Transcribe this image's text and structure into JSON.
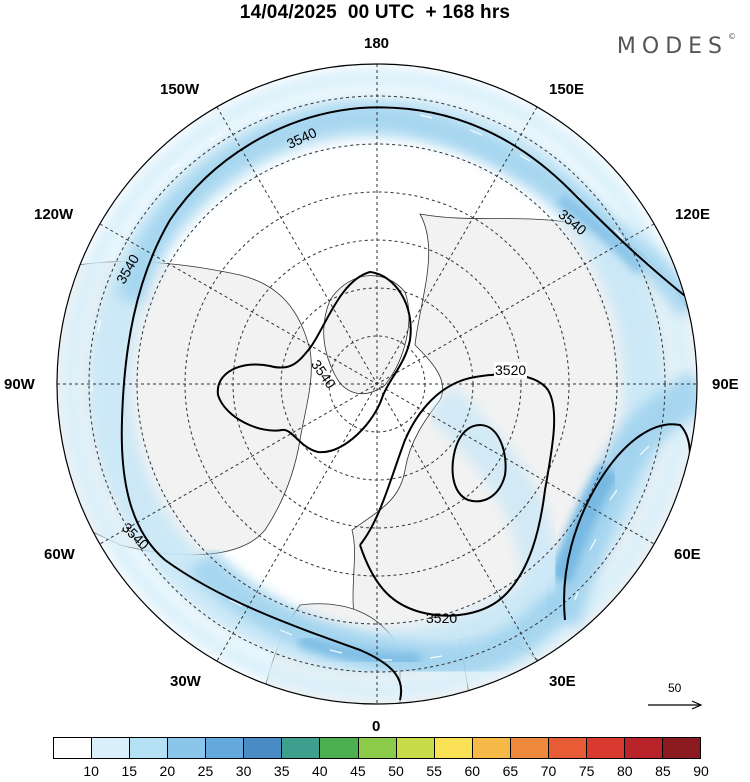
{
  "title": "14/04/2025  00 UTC  + 168 hrs",
  "brand": "MODES",
  "brand_mark": "©",
  "longitude_labels": {
    "n180": "180",
    "n150W": "150W",
    "n150E": "150E",
    "n120W": "120W",
    "n120E": "120E",
    "n90W": "90W",
    "n90E": "90E",
    "n60W": "60W",
    "n60E": "60E",
    "n30W": "30W",
    "n30E": "30E",
    "n0": "0"
  },
  "contour_labels": {
    "c1": "3540",
    "c2": "3540",
    "c3": "3540",
    "c4": "3540",
    "c5": "3540",
    "c6": "3520",
    "c7": "3520"
  },
  "reference_vector": "50",
  "colorbar": {
    "labels": [
      "10",
      "15",
      "20",
      "25",
      "30",
      "35",
      "40",
      "45",
      "50",
      "55",
      "60",
      "65",
      "70",
      "75",
      "80",
      "85",
      "90"
    ],
    "colors": [
      "#ffffff",
      "#d9f0fb",
      "#b5e1f5",
      "#8ac6ea",
      "#64a9dc",
      "#4a8cc6",
      "#3f9f8f",
      "#4cb050",
      "#8ccc4a",
      "#c7dc48",
      "#fbe156",
      "#f6b847",
      "#ef8a3d",
      "#e85c35",
      "#d93a2f",
      "#b8242a",
      "#8c1b20"
    ]
  },
  "colors": {
    "land": "#f2f2f2",
    "ocean": "#ffffff",
    "jet_light": "#cbe8f7",
    "jet_mid": "#9dd1ee",
    "jet_strong": "#72b6e2"
  }
}
